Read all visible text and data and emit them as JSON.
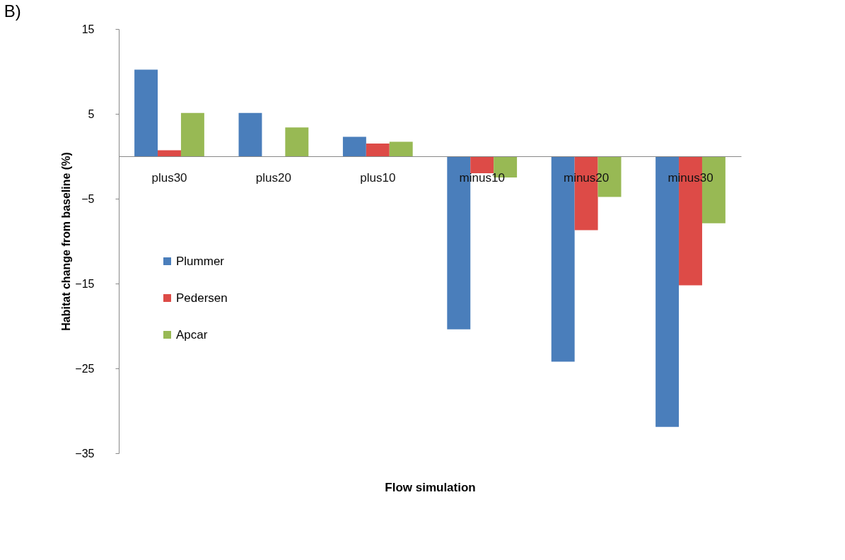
{
  "chart_data": {
    "type": "bar",
    "title": "B)",
    "xlabel": "Flow simulation",
    "ylabel": "Habitat change from baseline (%)",
    "categories": [
      "plus30",
      "plus20",
      "plus10",
      "minus10",
      "minus20",
      "minus30"
    ],
    "series": [
      {
        "name": "Plummer",
        "color": "#4a7ebb",
        "values": [
          10.2,
          5.1,
          2.3,
          -20.4,
          -24.2,
          -31.9
        ]
      },
      {
        "name": "Pedersen",
        "color": "#dd4b47",
        "values": [
          0.7,
          null,
          1.5,
          -2.0,
          -8.7,
          -15.2
        ]
      },
      {
        "name": "Apcar",
        "color": "#98b954",
        "values": [
          5.1,
          3.4,
          1.7,
          -2.5,
          -4.8,
          -7.9
        ]
      }
    ],
    "ylim": [
      -35,
      15
    ],
    "yticks": [
      -35,
      -25,
      -15,
      -5,
      5,
      15
    ],
    "grid": false,
    "legend": "left"
  }
}
